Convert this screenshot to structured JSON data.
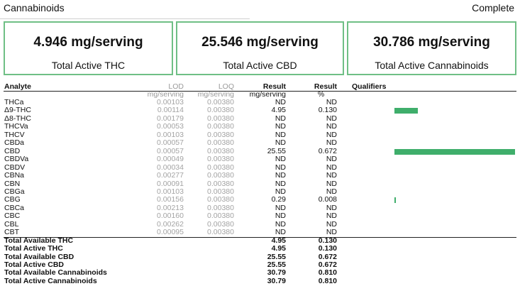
{
  "header": {
    "title": "Cannabinoids",
    "status": "Complete"
  },
  "summary": [
    {
      "value": "4.946 mg/serving",
      "label": "Total Active THC"
    },
    {
      "value": "25.546 mg/serving",
      "label": "Total Active CBD"
    },
    {
      "value": "30.786 mg/serving",
      "label": "Total Active Cannabinoids"
    }
  ],
  "table": {
    "headers": {
      "analyte": "Analyte",
      "lod": "LOD",
      "lod_unit": "mg/serving",
      "loq": "LOQ",
      "loq_unit": "mg/serving",
      "result": "Result",
      "result_unit": "mg/serving",
      "pct": "Result",
      "pct_unit": "%",
      "qualifiers": "Qualifiers"
    },
    "rows": [
      {
        "analyte": "THCa",
        "lod": "0.00103",
        "loq": "0.00380",
        "result": "ND",
        "pct": "ND",
        "bar": 0
      },
      {
        "analyte": "Δ9-THC",
        "lod": "0.00114",
        "loq": "0.00380",
        "result": "4.95",
        "pct": "0.130",
        "bar": 0.13
      },
      {
        "analyte": "Δ8-THC",
        "lod": "0.00179",
        "loq": "0.00380",
        "result": "ND",
        "pct": "ND",
        "bar": 0
      },
      {
        "analyte": "THCVa",
        "lod": "0.00053",
        "loq": "0.00380",
        "result": "ND",
        "pct": "ND",
        "bar": 0
      },
      {
        "analyte": "THCV",
        "lod": "0.00103",
        "loq": "0.00380",
        "result": "ND",
        "pct": "ND",
        "bar": 0
      },
      {
        "analyte": "CBDa",
        "lod": "0.00057",
        "loq": "0.00380",
        "result": "ND",
        "pct": "ND",
        "bar": 0
      },
      {
        "analyte": "CBD",
        "lod": "0.00057",
        "loq": "0.00380",
        "result": "25.55",
        "pct": "0.672",
        "bar": 0.672
      },
      {
        "analyte": "CBDVa",
        "lod": "0.00049",
        "loq": "0.00380",
        "result": "ND",
        "pct": "ND",
        "bar": 0
      },
      {
        "analyte": "CBDV",
        "lod": "0.00034",
        "loq": "0.00380",
        "result": "ND",
        "pct": "ND",
        "bar": 0
      },
      {
        "analyte": "CBNa",
        "lod": "0.00277",
        "loq": "0.00380",
        "result": "ND",
        "pct": "ND",
        "bar": 0
      },
      {
        "analyte": "CBN",
        "lod": "0.00091",
        "loq": "0.00380",
        "result": "ND",
        "pct": "ND",
        "bar": 0
      },
      {
        "analyte": "CBGa",
        "lod": "0.00103",
        "loq": "0.00380",
        "result": "ND",
        "pct": "ND",
        "bar": 0
      },
      {
        "analyte": "CBG",
        "lod": "0.00156",
        "loq": "0.00380",
        "result": "0.29",
        "pct": "0.008",
        "bar": 0.008
      },
      {
        "analyte": "CBCa",
        "lod": "0.00213",
        "loq": "0.00380",
        "result": "ND",
        "pct": "ND",
        "bar": 0
      },
      {
        "analyte": "CBC",
        "lod": "0.00160",
        "loq": "0.00380",
        "result": "ND",
        "pct": "ND",
        "bar": 0
      },
      {
        "analyte": "CBL",
        "lod": "0.00262",
        "loq": "0.00380",
        "result": "ND",
        "pct": "ND",
        "bar": 0
      },
      {
        "analyte": "CBT",
        "lod": "0.00095",
        "loq": "0.00380",
        "result": "ND",
        "pct": "ND",
        "bar": 0
      }
    ],
    "totals": [
      {
        "analyte": "Total Available THC",
        "result": "4.95",
        "pct": "0.130"
      },
      {
        "analyte": "Total Active THC",
        "result": "4.95",
        "pct": "0.130"
      },
      {
        "analyte": "Total Available CBD",
        "result": "25.55",
        "pct": "0.672"
      },
      {
        "analyte": "Total Active CBD",
        "result": "25.55",
        "pct": "0.672"
      },
      {
        "analyte": "Total Available Cannabinoids",
        "result": "30.79",
        "pct": "0.810"
      },
      {
        "analyte": "Total Active Cannabinoids",
        "result": "30.79",
        "pct": "0.810"
      }
    ],
    "bar_color": "#3fae6b"
  }
}
